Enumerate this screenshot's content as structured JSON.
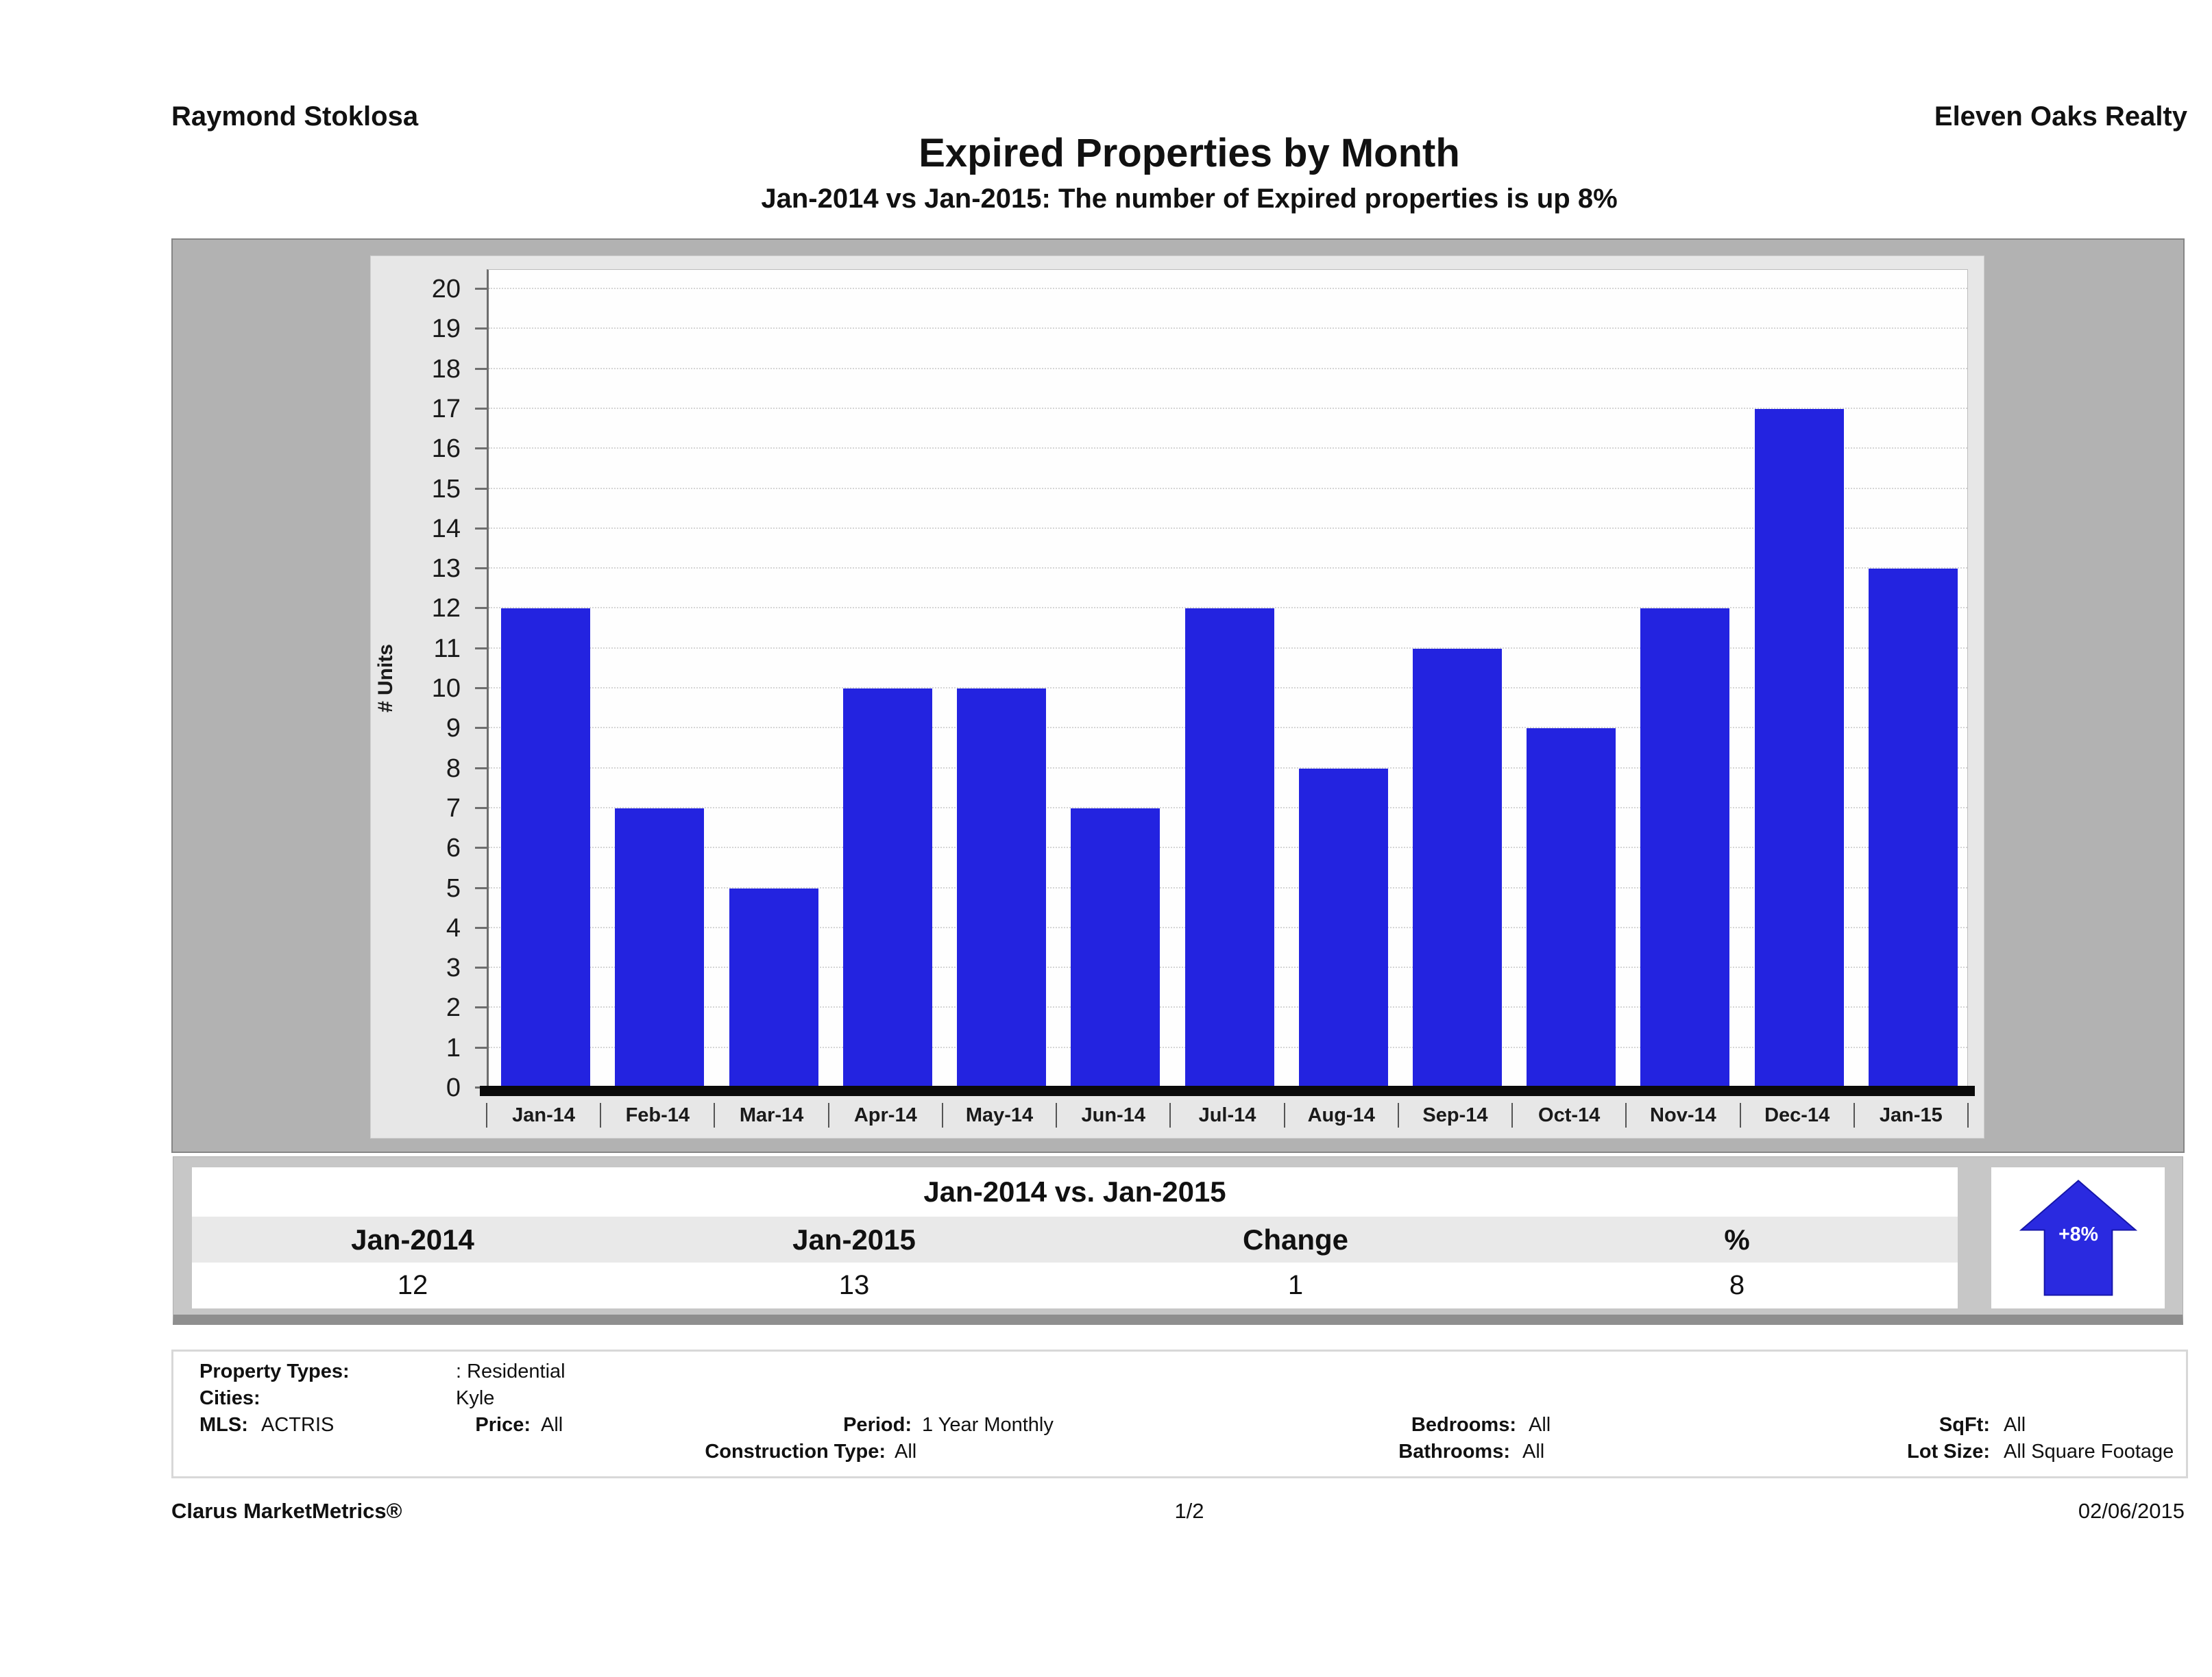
{
  "header": {
    "agent": "Raymond Stoklosa",
    "brokerage": "Eleven Oaks Realty"
  },
  "title": "Expired Properties by Month",
  "subtitle": "Jan-2014 vs Jan-2015: The number of Expired  properties is up 8%",
  "chart_data": {
    "type": "bar",
    "title": "Expired Properties by Month",
    "categories": [
      "Jan-14",
      "Feb-14",
      "Mar-14",
      "Apr-14",
      "May-14",
      "Jun-14",
      "Jul-14",
      "Aug-14",
      "Sep-14",
      "Oct-14",
      "Nov-14",
      "Dec-14",
      "Jan-15"
    ],
    "values": [
      12,
      7,
      5,
      10,
      10,
      7,
      12,
      8,
      11,
      9,
      12,
      17,
      13
    ],
    "xlabel": "",
    "ylabel": "# Units",
    "ylim": [
      0,
      20
    ],
    "ytick_step": 1,
    "grid": "horizontal-dotted",
    "legend": "none",
    "bar_color": "#2323e0"
  },
  "comparison": {
    "title": "Jan-2014 vs. Jan-2015",
    "columns": [
      "Jan-2014",
      "Jan-2015",
      "Change",
      "%"
    ],
    "values": [
      "12",
      "13",
      "1",
      "8"
    ],
    "badge": {
      "direction": "up",
      "label": "+8%",
      "color": "#2a2ae0"
    }
  },
  "filters": {
    "property_types_label": "Property Types:",
    "property_types_value": ": Residential",
    "cities_label": "Cities:",
    "cities_value": "Kyle",
    "mls_label": "MLS:",
    "mls_value": "ACTRIS",
    "price_label": "Price:",
    "price_value": "All",
    "period_label": "Period:",
    "period_value": "1 Year Monthly",
    "construction_label": "Construction Type:",
    "construction_value": "All",
    "bedrooms_label": "Bedrooms:",
    "bedrooms_value": "All",
    "bathrooms_label": "Bathrooms:",
    "bathrooms_value": "All",
    "sqft_label": "SqFt:",
    "sqft_value": "All",
    "lot_label": "Lot Size:",
    "lot_value": "All Square Footage"
  },
  "footer": {
    "brand": "Clarus MarketMetrics®",
    "page": "1/2",
    "date": "02/06/2015"
  }
}
